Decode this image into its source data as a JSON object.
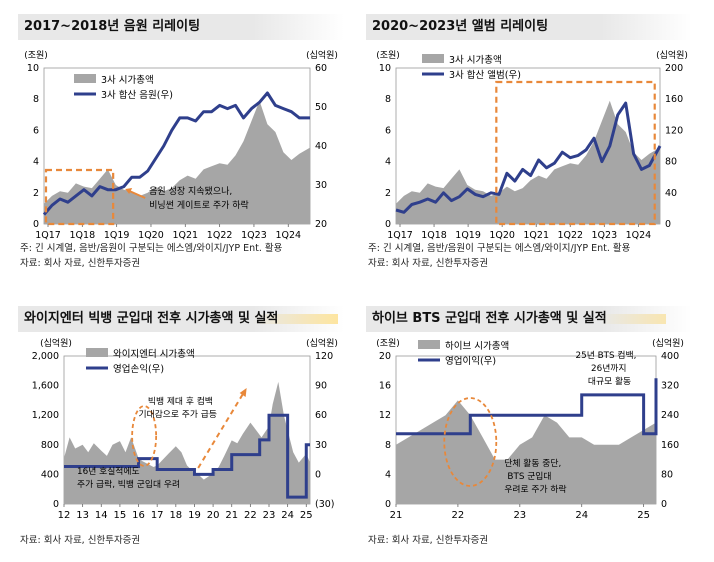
{
  "colors": {
    "area": "#a6a6a6",
    "line": "#2f3f8c",
    "annot": "#e8883a"
  },
  "panels": [
    {
      "title": "2017~2018년 음원 리레이팅",
      "notes": [
        "주: 긴 시계열, 음반/음원이 구분되는 에스엠/와이지/JYP Ent. 활용",
        "자료: 회사 자료, 신한투자증권"
      ],
      "annotation": [
        "음원 성장 지속됐으나,",
        "비닝썬 게이트로 주가 하락"
      ]
    },
    {
      "title": "2020~2023년 앨범 리레이팅",
      "notes": [
        "주: 긴 시계열, 음반/음원이 구분되는 에스엠/와이지/JYP Ent. 활용",
        "자료: 회사 자료, 신한투자증권"
      ]
    },
    {
      "title": "와이지엔터 빅뱅 군입대 전후 시가총액 및 실적",
      "notes": [
        "자료: 회사 자료, 신한투자증권"
      ],
      "annotation_a": [
        "빅뱅 제대 후 컴백",
        "기대감으로 주가 급등"
      ],
      "annotation_b": [
        "16년 호실적에도",
        "주가 급락, 빅뱅 군입대 우려"
      ]
    },
    {
      "title": "하이브 BTS 군입대 전후 시가총액 및 실적",
      "notes": [
        "자료: 회사 자료, 신한투자증권"
      ],
      "annotation_a": [
        "25년 BTS 컴백,",
        "26년까지",
        "대규모 활동"
      ],
      "annotation_b": [
        "단체 활동 중단,",
        "BTS 군입대",
        "우려로 주가 하락"
      ]
    }
  ],
  "chart_data": [
    {
      "type": "area+line",
      "left_unit": "(조원)",
      "right_unit": "(십억원)",
      "left_ticks": [
        "0",
        "2",
        "4",
        "6",
        "8",
        "10"
      ],
      "right_ticks": [
        "20",
        "30",
        "40",
        "50",
        "60"
      ],
      "ylim_left": [
        0,
        10
      ],
      "ylim_right": [
        20,
        70
      ],
      "x_ticks": [
        "1Q17",
        "1Q18",
        "1Q19",
        "1Q20",
        "1Q21",
        "1Q22",
        "1Q23",
        "1Q24"
      ],
      "series": [
        {
          "name": "3사 시가총액",
          "axis": "left",
          "type": "area",
          "x_frac": [
            0,
            0.03,
            0.06,
            0.09,
            0.12,
            0.15,
            0.18,
            0.21,
            0.24,
            0.27,
            0.3,
            0.33,
            0.36,
            0.39,
            0.42,
            0.45,
            0.48,
            0.51,
            0.54,
            0.57,
            0.6,
            0.63,
            0.66,
            0.69,
            0.72,
            0.75,
            0.78,
            0.81,
            0.84,
            0.87,
            0.9,
            0.93,
            0.96,
            1
          ],
          "values": [
            1.3,
            1.8,
            2.1,
            2.0,
            2.6,
            2.4,
            2.3,
            2.9,
            3.5,
            2.5,
            2.2,
            2.1,
            1.8,
            2.0,
            2.4,
            2.1,
            2.3,
            2.8,
            3.1,
            2.9,
            3.5,
            3.7,
            3.9,
            3.8,
            4.4,
            5.3,
            6.6,
            7.9,
            6.4,
            5.9,
            4.6,
            4.1,
            4.5,
            4.9
          ]
        },
        {
          "name": "3사 합산 음원(우)",
          "axis": "right",
          "type": "line",
          "x_frac": [
            0,
            0.03,
            0.06,
            0.09,
            0.12,
            0.15,
            0.18,
            0.21,
            0.24,
            0.27,
            0.3,
            0.33,
            0.36,
            0.39,
            0.42,
            0.45,
            0.48,
            0.51,
            0.54,
            0.57,
            0.6,
            0.63,
            0.66,
            0.69,
            0.72,
            0.75,
            0.78,
            0.81,
            0.84,
            0.87,
            0.9,
            0.93,
            0.96,
            1
          ],
          "values": [
            23,
            26,
            28,
            27,
            29,
            31,
            29,
            32,
            31,
            31,
            32,
            35,
            35,
            37,
            41,
            45,
            50,
            54,
            54,
            53,
            56,
            56,
            58,
            57,
            58,
            54,
            57,
            59,
            62,
            58,
            57,
            56,
            54,
            54
          ]
        }
      ],
      "highlight_x_frac": [
        0,
        0.26
      ]
    },
    {
      "type": "area+line",
      "left_unit": "(조원)",
      "right_unit": "(십억원)",
      "left_ticks": [
        "0",
        "2",
        "4",
        "6",
        "8",
        "10"
      ],
      "right_ticks": [
        "0",
        "40",
        "80",
        "120",
        "160",
        "200"
      ],
      "ylim_left": [
        0,
        10
      ],
      "ylim_right": [
        0,
        200
      ],
      "x_ticks": [
        "1Q17",
        "1Q18",
        "1Q19",
        "1Q20",
        "1Q21",
        "1Q22",
        "1Q23",
        "1Q24"
      ],
      "series": [
        {
          "name": "3사 시가총액",
          "axis": "left",
          "type": "area",
          "x_frac": [
            0,
            0.03,
            0.06,
            0.09,
            0.12,
            0.15,
            0.18,
            0.21,
            0.24,
            0.27,
            0.3,
            0.33,
            0.36,
            0.39,
            0.42,
            0.45,
            0.48,
            0.51,
            0.54,
            0.57,
            0.6,
            0.63,
            0.66,
            0.69,
            0.72,
            0.75,
            0.78,
            0.81,
            0.84,
            0.87,
            0.9,
            0.93,
            0.96,
            1
          ],
          "values": [
            1.3,
            1.8,
            2.1,
            2.0,
            2.6,
            2.4,
            2.3,
            2.9,
            3.5,
            2.5,
            2.2,
            2.1,
            1.8,
            2.0,
            2.4,
            2.1,
            2.3,
            2.8,
            3.1,
            2.9,
            3.5,
            3.7,
            3.9,
            3.8,
            4.4,
            5.3,
            6.6,
            7.9,
            6.4,
            5.9,
            4.6,
            4.1,
            4.5,
            4.9
          ]
        },
        {
          "name": "3사 합산 앨범(우)",
          "axis": "right",
          "type": "line",
          "x_frac": [
            0,
            0.03,
            0.06,
            0.09,
            0.12,
            0.15,
            0.18,
            0.21,
            0.24,
            0.27,
            0.3,
            0.33,
            0.36,
            0.39,
            0.42,
            0.45,
            0.48,
            0.51,
            0.54,
            0.57,
            0.6,
            0.63,
            0.66,
            0.69,
            0.72,
            0.75,
            0.78,
            0.81,
            0.84,
            0.87,
            0.9,
            0.93,
            0.96,
            1
          ],
          "values": [
            18,
            15,
            25,
            28,
            32,
            28,
            40,
            30,
            35,
            45,
            38,
            35,
            40,
            38,
            65,
            55,
            70,
            62,
            82,
            72,
            78,
            92,
            85,
            88,
            95,
            110,
            80,
            100,
            140,
            155,
            90,
            70,
            75,
            100
          ]
        }
      ],
      "highlight_x_frac": [
        0.38,
        0.98
      ]
    },
    {
      "type": "area+step",
      "left_unit": "(십억원)",
      "right_unit": "(십억원)",
      "left_ticks": [
        "0",
        "400",
        "800",
        "1,200",
        "1,600",
        "2,000"
      ],
      "right_ticks": [
        "(30)",
        "0",
        "30",
        "60",
        "90",
        "120"
      ],
      "ylim_left": [
        0,
        2000
      ],
      "ylim_right": [
        -30,
        120
      ],
      "x_ticks": [
        "12",
        "13",
        "14",
        "15",
        "16",
        "17",
        "18",
        "19",
        "20",
        "21",
        "22",
        "23",
        "24",
        "25"
      ],
      "series": [
        {
          "name": "와이지엔터 시가총액",
          "axis": "left",
          "type": "area",
          "x": [
            12,
            12.3,
            12.6,
            13,
            13.3,
            13.6,
            14,
            14.3,
            14.6,
            15,
            15.3,
            15.6,
            16,
            16.2,
            16.5,
            16.8,
            17,
            17.3,
            17.6,
            18,
            18.3,
            18.6,
            19,
            19.2,
            19.5,
            19.8,
            20,
            20.3,
            20.6,
            21,
            21.3,
            21.6,
            22,
            22.3,
            22.6,
            23,
            23.2,
            23.5,
            23.8,
            24,
            24.3,
            24.6,
            25,
            25.2
          ],
          "values": [
            620,
            900,
            750,
            800,
            700,
            820,
            720,
            650,
            800,
            850,
            700,
            900,
            620,
            580,
            540,
            500,
            520,
            600,
            680,
            780,
            700,
            520,
            420,
            400,
            330,
            380,
            420,
            500,
            650,
            860,
            820,
            950,
            1100,
            1000,
            900,
            1050,
            1350,
            1650,
            1200,
            1000,
            700,
            560,
            680,
            560
          ]
        },
        {
          "name": "영업손익(우)",
          "axis": "right",
          "type": "step",
          "x": [
            12,
            14,
            15,
            16,
            17,
            18,
            19,
            20,
            21,
            22,
            22.5,
            23,
            24,
            25,
            25.2
          ],
          "values": [
            8,
            8,
            8,
            16,
            5,
            5,
            0,
            5,
            20,
            20,
            35,
            60,
            -23,
            30,
            30
          ]
        }
      ]
    },
    {
      "type": "area+step",
      "left_unit": "(조원)",
      "right_unit": "(십억원)",
      "left_ticks": [
        "0",
        "4",
        "8",
        "12",
        "16",
        "20"
      ],
      "right_ticks": [
        "0",
        "80",
        "160",
        "240",
        "320",
        "400"
      ],
      "ylim_left": [
        0,
        20
      ],
      "ylim_right": [
        0,
        400
      ],
      "x_ticks": [
        "21",
        "22",
        "23",
        "24",
        "25"
      ],
      "series": [
        {
          "name": "하이브 시가총액",
          "axis": "left",
          "type": "area",
          "x": [
            21,
            21.2,
            21.4,
            21.6,
            21.8,
            22,
            22.2,
            22.4,
            22.6,
            22.8,
            23,
            23.2,
            23.4,
            23.6,
            23.8,
            24,
            24.2,
            24.4,
            24.6,
            24.8,
            25,
            25.2
          ],
          "values": [
            8,
            9,
            10,
            11,
            12,
            14,
            12,
            9,
            6,
            6,
            8,
            9,
            12,
            11,
            9,
            9,
            8,
            8,
            8,
            9,
            10,
            11
          ]
        },
        {
          "name": "영업이익(우)",
          "axis": "right",
          "type": "step",
          "x": [
            21,
            22,
            22.2,
            23,
            24,
            25,
            25.2
          ],
          "values": [
            190,
            190,
            240,
            240,
            295,
            190,
            340
          ]
        }
      ]
    }
  ]
}
